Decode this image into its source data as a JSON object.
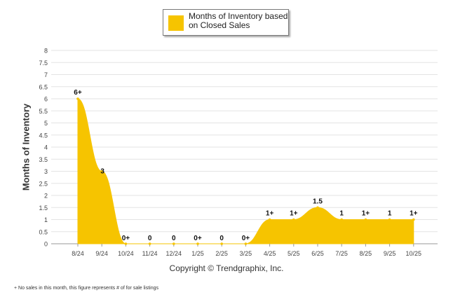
{
  "chart_data": {
    "type": "area",
    "series_name": "Months of Inventory based on Closed Sales",
    "legend_lines": [
      "Months of Inventory based",
      "on Closed Sales"
    ],
    "categories": [
      "8/24",
      "9/24",
      "10/24",
      "11/24",
      "12/24",
      "1/25",
      "2/25",
      "3/25",
      "4/25",
      "5/25",
      "6/25",
      "7/25",
      "8/25",
      "9/25",
      "10/25"
    ],
    "values": [
      6,
      3,
      0,
      0,
      0,
      0,
      0,
      0,
      1,
      1,
      1.5,
      1,
      1,
      1,
      1
    ],
    "data_labels": [
      "6+",
      "3",
      "0+",
      "0",
      "0",
      "0+",
      "0",
      "0+",
      "1+",
      "1+",
      "1.5",
      "1",
      "1+",
      "1",
      "1+"
    ],
    "ylabel": "Months of Inventory",
    "xlabel": "",
    "ylim": [
      0,
      8
    ],
    "yticks": [
      "0",
      "0.5",
      "1",
      "1.5",
      "2",
      "2.5",
      "3",
      "3.5",
      "4",
      "4.5",
      "5",
      "5.5",
      "6",
      "6.5",
      "7",
      "7.5",
      "8"
    ],
    "grid": true,
    "fill_color": "#f6c400",
    "legend_position": "top-center"
  },
  "copyright": "Copyright © Trendgraphix, Inc.",
  "footnote": "+ No sales in this month, this figure represents # of for sale listings"
}
